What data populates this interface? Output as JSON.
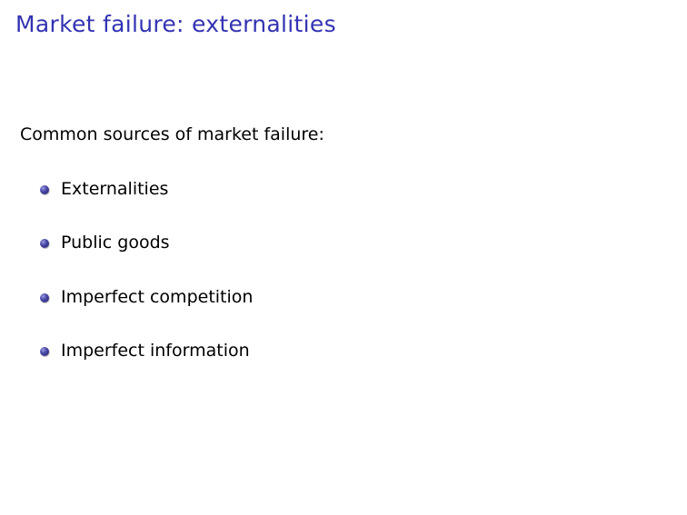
{
  "slide": {
    "title": "Market failure: externalities",
    "intro": "Common sources of market failure:",
    "bullets": [
      {
        "label": "Externalities"
      },
      {
        "label": "Public goods"
      },
      {
        "label": "Imperfect competition"
      },
      {
        "label": "Imperfect information"
      }
    ]
  },
  "colors": {
    "title": "#3333b3",
    "bullet": "#3c3ca0",
    "text": "#000000",
    "background": "#ffffff"
  }
}
